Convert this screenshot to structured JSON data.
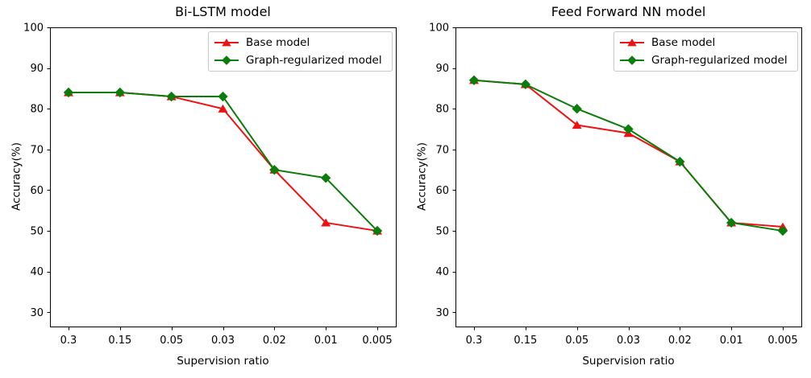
{
  "figure": {
    "background": "#ffffff",
    "spine_color": "#000000",
    "text_color": "#000000",
    "legend_border_color": "#c9c9c9"
  },
  "chart_data": [
    {
      "type": "line",
      "title": "Bi-LSTM model",
      "xlabel": "Supervision ratio",
      "ylabel": "Accuracy(%)",
      "categories": [
        "0.3",
        "0.15",
        "0.05",
        "0.03",
        "0.02",
        "0.01",
        "0.005"
      ],
      "y_ticks": [
        30,
        40,
        50,
        60,
        70,
        80,
        90,
        100
      ],
      "ylim": [
        26.5,
        100
      ],
      "grid": false,
      "legend_position": "upper right",
      "series": [
        {
          "name": "Base model",
          "color": "#ee1111",
          "marker": "triangle-up",
          "values": [
            84,
            84,
            83,
            80,
            65,
            52,
            50
          ]
        },
        {
          "name": "Graph-regularized model",
          "color": "#0a7d0a",
          "marker": "diamond",
          "values": [
            84,
            84,
            83,
            83,
            65,
            63,
            50
          ]
        }
      ]
    },
    {
      "type": "line",
      "title": "Feed Forward NN model",
      "xlabel": "Supervision ratio",
      "ylabel": "Accuracy(%)",
      "categories": [
        "0.3",
        "0.15",
        "0.05",
        "0.03",
        "0.02",
        "0.01",
        "0.005"
      ],
      "y_ticks": [
        30,
        40,
        50,
        60,
        70,
        80,
        90,
        100
      ],
      "ylim": [
        26.5,
        100
      ],
      "grid": false,
      "legend_position": "upper right",
      "series": [
        {
          "name": "Base model",
          "color": "#ee1111",
          "marker": "triangle-up",
          "values": [
            87,
            86,
            76,
            74,
            67,
            52,
            51
          ]
        },
        {
          "name": "Graph-regularized model",
          "color": "#0a7d0a",
          "marker": "diamond",
          "values": [
            87,
            86,
            80,
            75,
            67,
            52,
            50
          ]
        }
      ]
    }
  ]
}
